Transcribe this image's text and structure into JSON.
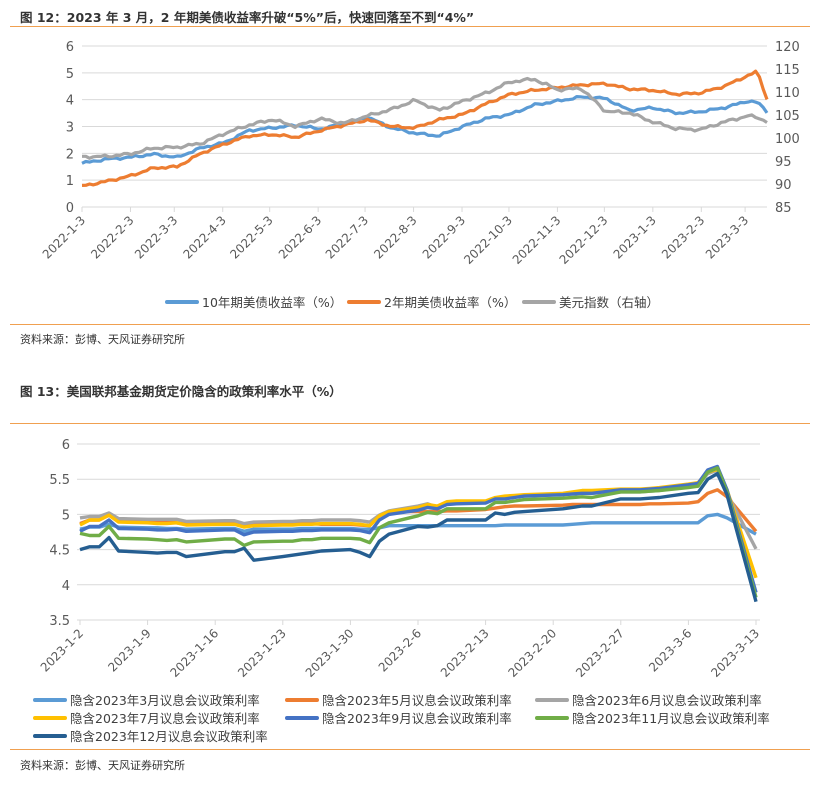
{
  "figure12": {
    "title": "图 12：2023 年 3 月，2 年期美债收益率升破“5%”后，快速回落至不到“4%”",
    "source": "资料来源：彭博、天风证券研究所"
  },
  "figure13": {
    "title": "图 13：美国联邦基金期货定价隐含的政策利率水平（%）",
    "source": "资料来源：彭博、天风证券研究所"
  },
  "chart_data": [
    {
      "type": "line",
      "title": "2023 年 3 月，2 年期美债收益率升破“5%”后，快速回落至不到“4%”",
      "xlabel": "",
      "ylabel": "",
      "x_ticks": [
        "2022-1-3",
        "2022-2-3",
        "2022-3-3",
        "2022-4-3",
        "2022-5-3",
        "2022-6-3",
        "2022-7-3",
        "2022-8-3",
        "2022-9-3",
        "2022-10-3",
        "2022-11-3",
        "2022-12-3",
        "2023-1-3",
        "2023-2-3",
        "2023-3-3"
      ],
      "x_range": [
        "2022-01-03",
        "2023-03-17"
      ],
      "ylim_left": [
        0,
        6
      ],
      "yticks_left": [
        "0",
        "1",
        "2",
        "3",
        "4",
        "5",
        "6"
      ],
      "ylim_right": [
        85,
        120
      ],
      "yticks_right": [
        "85",
        "90",
        "95",
        "100",
        "105",
        "110",
        "115",
        "120"
      ],
      "grid": true,
      "legend_position": "bottom",
      "note": "values approximated from the plot at roughly 2-week intervals (x = months since 2022-01-03)",
      "x": [
        0,
        0.5,
        1,
        1.5,
        2,
        2.5,
        3,
        3.5,
        4,
        4.5,
        5,
        5.5,
        6,
        6.5,
        7,
        7.5,
        8,
        8.5,
        9,
        9.5,
        10,
        10.5,
        11,
        11.5,
        12,
        12.5,
        13,
        13.5,
        14,
        14.2,
        14.4
      ],
      "series": [
        {
          "name": "10年期美债收益率（%）",
          "axis": "left",
          "color": "#5b9bd5",
          "values": [
            1.63,
            1.78,
            1.85,
            1.97,
            1.85,
            2.2,
            2.4,
            2.85,
            2.95,
            3.05,
            2.9,
            3.1,
            3.35,
            2.95,
            2.75,
            2.65,
            3.0,
            3.3,
            3.45,
            3.8,
            3.95,
            4.1,
            4.05,
            3.6,
            3.7,
            3.5,
            3.55,
            3.7,
            3.95,
            3.9,
            3.55
          ]
        },
        {
          "name": "2年期美债收益率（%）",
          "axis": "left",
          "color": "#ed7d31",
          "values": [
            0.78,
            0.95,
            1.15,
            1.45,
            1.5,
            2.0,
            2.35,
            2.65,
            2.7,
            2.6,
            2.85,
            3.05,
            3.25,
            3.0,
            2.95,
            3.25,
            3.45,
            3.85,
            4.2,
            4.35,
            4.45,
            4.55,
            4.6,
            4.4,
            4.35,
            4.2,
            4.25,
            4.5,
            4.9,
            5.05,
            4.0
          ]
        },
        {
          "name": "美元指数（右轴）",
          "axis": "right",
          "color": "#a5a5a5",
          "values": [
            95.9,
            96.0,
            96.5,
            97.8,
            98.0,
            98.8,
            101.0,
            102.8,
            104.0,
            102.5,
            104.2,
            103.2,
            104.8,
            106.2,
            108.2,
            106.0,
            108.0,
            109.8,
            112.2,
            112.8,
            110.5,
            110.8,
            105.8,
            105.5,
            103.5,
            102.0,
            101.8,
            103.5,
            104.8,
            104.5,
            103.5
          ]
        }
      ]
    },
    {
      "type": "line",
      "title": "美国联邦基金期货定价隐含的政策利率水平（%）",
      "xlabel": "",
      "ylabel": "",
      "x_ticks": [
        "2023-1-2",
        "2023-1-9",
        "2023-1-16",
        "2023-1-23",
        "2023-1-30",
        "2023-2-6",
        "2023-2-13",
        "2023-2-20",
        "2023-2-27",
        "2023-3-6",
        "2023-3-13"
      ],
      "x_range": [
        "2023-01-02",
        "2023-03-13"
      ],
      "ylim": [
        3.5,
        6
      ],
      "yticks": [
        "3.5",
        "4",
        "4.5",
        "5",
        "5.5",
        "6"
      ],
      "grid": true,
      "legend_position": "bottom",
      "x": [
        "2023-01-02",
        "2023-01-03",
        "2023-01-04",
        "2023-01-05",
        "2023-01-06",
        "2023-01-09",
        "2023-01-10",
        "2023-01-11",
        "2023-01-12",
        "2023-01-13",
        "2023-01-17",
        "2023-01-18",
        "2023-01-19",
        "2023-01-20",
        "2023-01-23",
        "2023-01-24",
        "2023-01-25",
        "2023-01-26",
        "2023-01-27",
        "2023-01-30",
        "2023-01-31",
        "2023-02-01",
        "2023-02-02",
        "2023-02-03",
        "2023-02-06",
        "2023-02-07",
        "2023-02-08",
        "2023-02-09",
        "2023-02-10",
        "2023-02-13",
        "2023-02-14",
        "2023-02-15",
        "2023-02-16",
        "2023-02-17",
        "2023-02-21",
        "2023-02-22",
        "2023-02-23",
        "2023-02-24",
        "2023-02-27",
        "2023-02-28",
        "2023-03-01",
        "2023-03-02",
        "2023-03-03",
        "2023-03-06",
        "2023-03-07",
        "2023-03-08",
        "2023-03-09",
        "2023-03-10",
        "2023-03-13"
      ],
      "series": [
        {
          "name": "隐含2023年3月议息会议政策利率",
          "color": "#5b9bd5",
          "values": [
            4.79,
            4.82,
            4.82,
            4.86,
            4.82,
            4.81,
            4.81,
            4.8,
            4.8,
            4.79,
            4.8,
            4.8,
            4.76,
            4.79,
            4.79,
            4.79,
            4.8,
            4.8,
            4.8,
            4.8,
            4.79,
            4.79,
            4.81,
            4.84,
            4.84,
            4.84,
            4.84,
            4.84,
            4.84,
            4.84,
            4.84,
            4.85,
            4.85,
            4.85,
            4.85,
            4.86,
            4.87,
            4.88,
            4.88,
            4.88,
            4.88,
            4.88,
            4.88,
            4.88,
            4.88,
            4.98,
            5.0,
            4.95,
            4.72
          ]
        },
        {
          "name": "隐含2023年5月议息会议政策利率",
          "color": "#ed7d31",
          "values": [
            4.87,
            4.92,
            4.92,
            4.99,
            4.9,
            4.89,
            4.89,
            4.89,
            4.88,
            4.86,
            4.87,
            4.87,
            4.83,
            4.85,
            4.86,
            4.86,
            4.87,
            4.87,
            4.86,
            4.86,
            4.85,
            4.84,
            4.98,
            5.04,
            5.04,
            5.04,
            5.04,
            5.05,
            5.05,
            5.07,
            5.09,
            5.11,
            5.12,
            5.12,
            5.13,
            5.14,
            5.14,
            5.14,
            5.14,
            5.14,
            5.14,
            5.15,
            5.15,
            5.16,
            5.18,
            5.3,
            5.35,
            5.25,
            4.76
          ]
        },
        {
          "name": "隐含2023年6月议息会议政策利率",
          "color": "#a5a5a5",
          "values": [
            4.95,
            4.97,
            4.97,
            5.02,
            4.94,
            4.93,
            4.93,
            4.93,
            4.93,
            4.9,
            4.91,
            4.91,
            4.87,
            4.89,
            4.9,
            4.9,
            4.91,
            4.91,
            4.92,
            4.92,
            4.91,
            4.89,
            4.99,
            5.05,
            5.12,
            5.15,
            5.1,
            5.16,
            5.18,
            5.18,
            5.22,
            5.24,
            5.25,
            5.26,
            5.28,
            5.3,
            5.31,
            5.3,
            5.32,
            5.32,
            5.32,
            5.33,
            5.34,
            5.4,
            5.42,
            5.58,
            5.63,
            5.3,
            4.51
          ]
        },
        {
          "name": "隐含2023年7月议息会议政策利率",
          "color": "#ffc000",
          "values": [
            4.85,
            4.92,
            4.92,
            4.99,
            4.89,
            4.88,
            4.87,
            4.87,
            4.88,
            4.85,
            4.86,
            4.86,
            4.82,
            4.84,
            4.85,
            4.85,
            4.86,
            4.86,
            4.87,
            4.87,
            4.86,
            4.84,
            4.98,
            5.04,
            5.1,
            5.14,
            5.12,
            5.18,
            5.19,
            5.19,
            5.24,
            5.26,
            5.27,
            5.28,
            5.3,
            5.32,
            5.34,
            5.34,
            5.36,
            5.36,
            5.36,
            5.37,
            5.38,
            5.43,
            5.45,
            5.6,
            5.64,
            5.35,
            4.1
          ]
        },
        {
          "name": "隐含2023年9月议息会议政策利率",
          "color": "#4472c4",
          "values": [
            4.76,
            4.83,
            4.83,
            4.92,
            4.8,
            4.79,
            4.78,
            4.78,
            4.79,
            4.76,
            4.78,
            4.78,
            4.71,
            4.75,
            4.76,
            4.76,
            4.77,
            4.77,
            4.78,
            4.78,
            4.77,
            4.74,
            4.92,
            5.0,
            5.06,
            5.1,
            5.08,
            5.14,
            5.15,
            5.16,
            5.22,
            5.22,
            5.24,
            5.26,
            5.28,
            5.29,
            5.3,
            5.3,
            5.35,
            5.35,
            5.35,
            5.36,
            5.37,
            5.42,
            5.44,
            5.63,
            5.68,
            5.35,
            3.89
          ]
        },
        {
          "name": "隐含2023年11月议息会议政策利率",
          "color": "#70ad47",
          "values": [
            4.73,
            4.7,
            4.7,
            4.83,
            4.66,
            4.65,
            4.64,
            4.63,
            4.64,
            4.61,
            4.65,
            4.65,
            4.56,
            4.61,
            4.62,
            4.62,
            4.64,
            4.64,
            4.66,
            4.66,
            4.65,
            4.6,
            4.81,
            4.88,
            4.98,
            5.03,
            5.01,
            5.08,
            5.08,
            5.08,
            5.17,
            5.17,
            5.19,
            5.21,
            5.23,
            5.24,
            5.25,
            5.24,
            5.32,
            5.32,
            5.32,
            5.33,
            5.34,
            5.38,
            5.4,
            5.6,
            5.66,
            5.32,
            3.82
          ]
        },
        {
          "name": "隐含2023年12月议息会议政策利率",
          "color": "#255e91",
          "values": [
            4.5,
            4.54,
            4.54,
            4.67,
            4.48,
            4.46,
            4.45,
            4.46,
            4.46,
            4.4,
            4.47,
            4.47,
            4.52,
            4.35,
            4.4,
            4.42,
            4.44,
            4.46,
            4.48,
            4.5,
            4.46,
            4.4,
            4.62,
            4.72,
            4.83,
            4.82,
            4.84,
            4.92,
            4.92,
            4.92,
            5.02,
            5.0,
            5.03,
            5.04,
            5.08,
            5.1,
            5.12,
            5.12,
            5.22,
            5.22,
            5.22,
            5.23,
            5.24,
            5.3,
            5.31,
            5.5,
            5.58,
            5.28,
            3.76
          ]
        }
      ]
    }
  ]
}
